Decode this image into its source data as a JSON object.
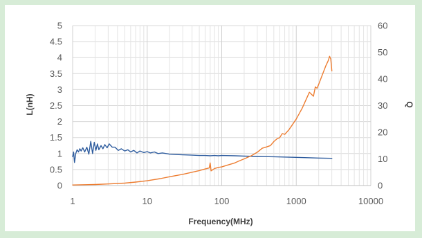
{
  "chart_data": {
    "type": "line",
    "xscale": "log",
    "xlabel": "Frequency(MHz)",
    "ylabel": "L(nH)",
    "y2label": "Q",
    "xlim": [
      1,
      10000
    ],
    "ylim": [
      0,
      5
    ],
    "y2lim": [
      0,
      60
    ],
    "x_ticks": [
      "1",
      "10",
      "100",
      "1000",
      "10000"
    ],
    "y_ticks": [
      "0",
      "0.5",
      "1",
      "1.5",
      "2",
      "2.5",
      "3",
      "3.5",
      "4",
      "4.5",
      "5"
    ],
    "y2_ticks": [
      "0",
      "10",
      "20",
      "30",
      "40",
      "50",
      "60"
    ],
    "grid": true,
    "legend": "none",
    "series": [
      {
        "axis": "left",
        "color": "#2e5c9e",
        "x": [
          1,
          1.03,
          1.06,
          1.1,
          1.15,
          1.2,
          1.25,
          1.3,
          1.37,
          1.45,
          1.55,
          1.65,
          1.75,
          1.85,
          1.95,
          2.05,
          2.15,
          2.25,
          2.4,
          2.55,
          2.7,
          2.9,
          3.1,
          3.4,
          3.7,
          4.1,
          4.5,
          5,
          5.5,
          6,
          6.6,
          7.3,
          8,
          9,
          10,
          11,
          12.5,
          14,
          16,
          18,
          20,
          25,
          30,
          40,
          50,
          60,
          70,
          80,
          90,
          100,
          150,
          200,
          300,
          500,
          1000,
          2000,
          3000
        ],
        "y": [
          0.9,
          1.05,
          0.72,
          1.0,
          1.12,
          1.05,
          1.15,
          1.08,
          1.18,
          1.05,
          1.2,
          0.98,
          1.38,
          1.0,
          1.35,
          1.1,
          1.3,
          1.12,
          1.25,
          1.15,
          1.28,
          1.18,
          1.3,
          1.2,
          1.2,
          1.1,
          1.15,
          1.08,
          1.12,
          1.05,
          1.1,
          1.02,
          1.08,
          1.03,
          1.06,
          1.02,
          1.05,
          1.0,
          1.02,
          1.0,
          0.98,
          0.97,
          0.96,
          0.95,
          0.94,
          0.94,
          0.93,
          0.94,
          0.93,
          0.94,
          0.93,
          0.92,
          0.91,
          0.9,
          0.88,
          0.86,
          0.85
        ]
      },
      {
        "axis": "right",
        "color": "#ed7d31",
        "x": [
          1,
          2,
          3,
          5,
          7,
          10,
          15,
          20,
          30,
          40,
          50,
          60,
          68,
          70,
          72,
          80,
          90,
          100,
          120,
          150,
          170,
          200,
          250,
          300,
          350,
          400,
          450,
          500,
          550,
          600,
          650,
          700,
          800,
          1000,
          1200,
          1500,
          1700,
          1800,
          1900,
          2000,
          2200,
          2500,
          2700,
          2800,
          2900,
          3000
        ],
        "y": [
          0.2,
          0.4,
          0.6,
          0.9,
          1.3,
          1.8,
          2.6,
          3.3,
          4.2,
          5.0,
          5.6,
          6.2,
          6.6,
          8.5,
          5.5,
          6.4,
          6.8,
          7.0,
          7.7,
          8.5,
          9.2,
          10.0,
          11.2,
          12.5,
          14.0,
          14.5,
          15.0,
          16.5,
          17.5,
          18.0,
          19.5,
          19.2,
          21.0,
          25.0,
          29.0,
          35.0,
          33.5,
          37.0,
          36.5,
          38.0,
          41.0,
          45.0,
          47.0,
          48.5,
          47.5,
          43.0
        ]
      }
    ]
  }
}
